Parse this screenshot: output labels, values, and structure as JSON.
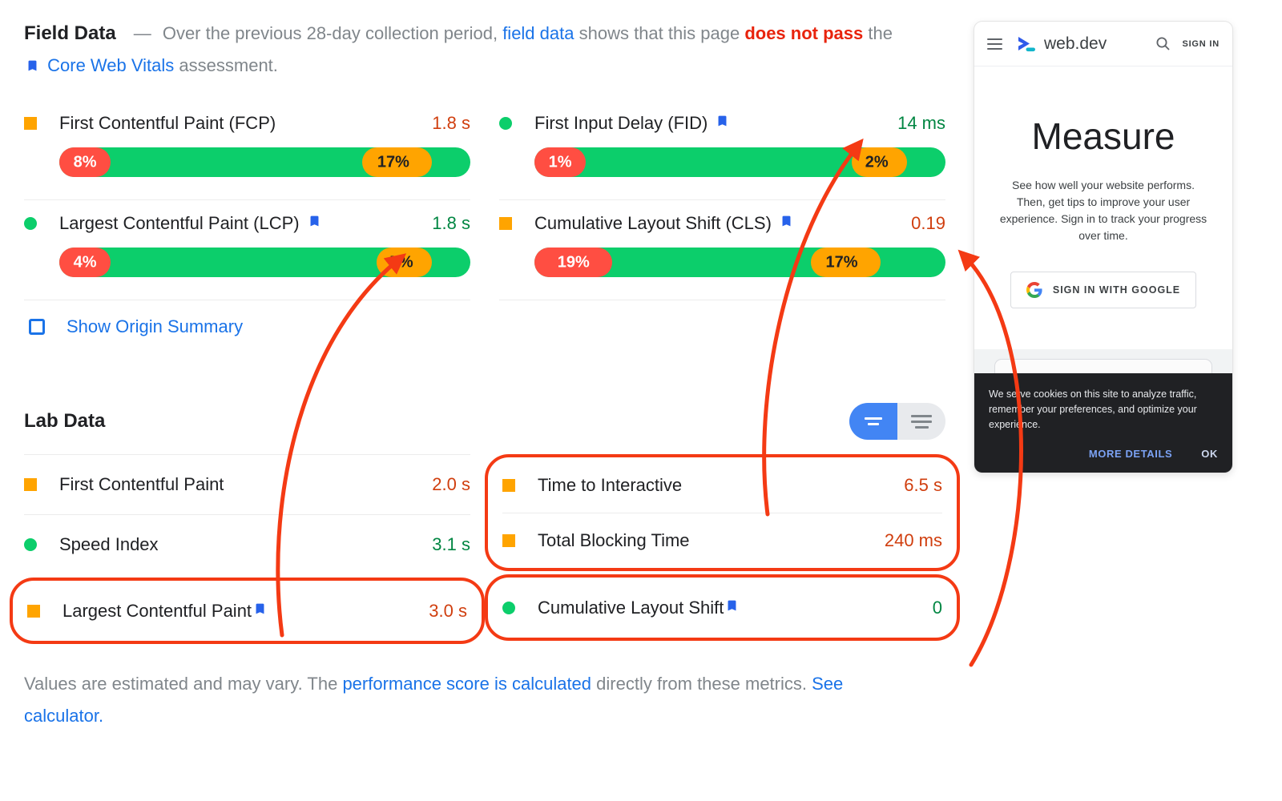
{
  "field": {
    "title": "Field Data",
    "separator": "—",
    "desc1": "Over the previous 28-day collection period,",
    "link_field_data": "field data",
    "desc2": "shows that this page",
    "alert": "does not pass",
    "desc3": "the",
    "link_cwv": "Core Web Vitals",
    "desc4": "assessment.",
    "origin_summary_label": "Show Origin Summary",
    "metrics": [
      {
        "icon": "square",
        "label": "First Contentful Paint (FCP)",
        "bookmark": false,
        "value": "1.8 s",
        "value_class": "orange",
        "dist": {
          "good": 75,
          "avg": 17,
          "poor": 8
        }
      },
      {
        "icon": "circle",
        "label": "First Input Delay (FID)",
        "bookmark": true,
        "value": "14 ms",
        "value_class": "green",
        "dist": {
          "good": 97,
          "avg": 2,
          "poor": 1
        }
      },
      {
        "icon": "circle",
        "label": "Largest Contentful Paint (LCP)",
        "bookmark": true,
        "value": "1.8 s",
        "value_class": "green",
        "dist": {
          "good": 88,
          "avg": 7,
          "poor": 4
        }
      },
      {
        "icon": "square",
        "label": "Cumulative Layout Shift (CLS)",
        "bookmark": true,
        "value": "0.19",
        "value_class": "orange",
        "dist": {
          "good": 64,
          "avg": 17,
          "poor": 19
        }
      }
    ]
  },
  "lab": {
    "title": "Lab Data",
    "metrics": [
      {
        "icon": "square",
        "label": "First Contentful Paint",
        "value": "2.0 s",
        "value_class": "orange"
      },
      {
        "icon": "circle",
        "label": "Speed Index",
        "value": "3.1 s",
        "value_class": "green"
      },
      {
        "icon": "square",
        "label": "Largest Contentful Paint",
        "value": "3.0 s",
        "value_class": "orange"
      },
      {
        "icon": "square",
        "label": "Time to Interactive",
        "value": "6.5 s",
        "value_class": "orange"
      },
      {
        "icon": "square",
        "label": "Total Blocking Time",
        "value": "240 ms",
        "value_class": "orange"
      },
      {
        "icon": "circle",
        "label": "Cumulative Layout Shift",
        "value": "0",
        "value_class": "green"
      }
    ]
  },
  "footer": {
    "text1": "Values are estimated and may vary. The",
    "link1": "performance score is calculated",
    "text2": "directly from these metrics.",
    "link2": "See calculator."
  },
  "phone": {
    "brand": "web.dev",
    "sign_in": "SIGN IN",
    "heading": "Measure",
    "description": "See how well your website performs. Then, get tips to improve your user experience. Sign in to track your progress over time.",
    "google_button": "SIGN IN WITH GOOGLE",
    "cookie": {
      "message": "We serve cookies on this site to analyze traffic, remember your preferences, and optimize your experience.",
      "more_details": "MORE DETAILS",
      "ok": "OK"
    }
  },
  "colors": {
    "good_bar": "#0cce6b",
    "average_bar": "#ffa400",
    "poor_bar": "#ff4e42",
    "annotation_red": "#f43a14",
    "link_blue": "#1a73e8",
    "green_value_text": "#018642",
    "orange_value_text": "#d03e0e"
  }
}
